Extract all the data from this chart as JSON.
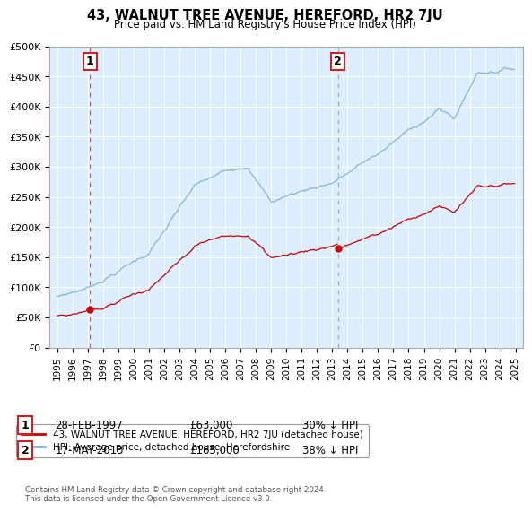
{
  "title": "43, WALNUT TREE AVENUE, HEREFORD, HR2 7JU",
  "subtitle": "Price paid vs. HM Land Registry's House Price Index (HPI)",
  "legend_line1": "43, WALNUT TREE AVENUE, HEREFORD, HR2 7JU (detached house)",
  "legend_line2": "HPI: Average price, detached house, Herefordshire",
  "annotation1_label": "1",
  "annotation1_date": "28-FEB-1997",
  "annotation1_price": "£63,000",
  "annotation1_hpi": "30% ↓ HPI",
  "annotation2_label": "2",
  "annotation2_date": "17-MAY-2013",
  "annotation2_price": "£165,000",
  "annotation2_hpi": "38% ↓ HPI",
  "point1_year": 1997.15,
  "point1_value": 63000,
  "point2_year": 2013.37,
  "point2_value": 165000,
  "copyright_text": "Contains HM Land Registry data © Crown copyright and database right 2024.\nThis data is licensed under the Open Government Licence v3.0.",
  "red_color": "#cc0000",
  "blue_color": "#7bafd4",
  "bg_color": "#ddeeff",
  "ylim_max": 500000,
  "xlim_min": 1994.5,
  "xlim_max": 2025.5
}
